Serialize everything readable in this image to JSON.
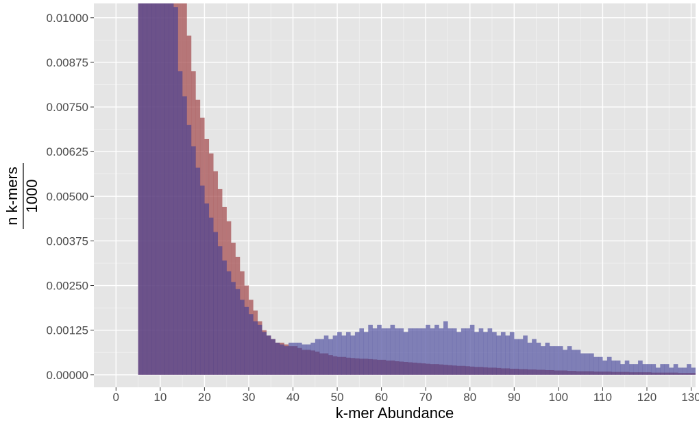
{
  "chart_data": {
    "type": "histogram",
    "title": "",
    "xlabel": "k-mer Abundance",
    "ylabel": {
      "numerator": "n k-mers",
      "denominator": "1000"
    },
    "xlim": [
      -5,
      131
    ],
    "ylim": [
      -0.00035,
      0.0104
    ],
    "bin_width": 1,
    "x_ticks": [
      0,
      10,
      20,
      30,
      40,
      50,
      60,
      70,
      80,
      90,
      100,
      110,
      120,
      130
    ],
    "y_ticks": [
      0.0,
      0.00125,
      0.0025,
      0.00375,
      0.005,
      0.00625,
      0.0075,
      0.00875,
      0.01
    ],
    "y_tick_labels": [
      "0.00000",
      "0.00125",
      "0.00250",
      "0.00375",
      "0.00500",
      "0.00625",
      "0.00750",
      "0.00875",
      "0.01000"
    ],
    "grid": true,
    "legend": "none",
    "series": [
      {
        "color": "#a2474a",
        "opacity": 0.7,
        "start": 5,
        "values": [
          0.0105,
          0.0105,
          0.0105,
          0.0105,
          0.0105,
          0.0105,
          0.0105,
          0.0105,
          0.0105,
          0.0105,
          0.0105,
          0.0095,
          0.0085,
          0.0077,
          0.0072,
          0.0066,
          0.0062,
          0.0057,
          0.0052,
          0.0047,
          0.0043,
          0.0037,
          0.0033,
          0.0029,
          0.0025,
          0.0021,
          0.0018,
          0.0015,
          0.00125,
          0.0011,
          0.001,
          0.0009,
          0.0009,
          0.00085,
          0.0008,
          0.0008,
          0.00075,
          0.0007,
          0.0007,
          0.00068,
          0.00065,
          0.0006,
          0.0006,
          0.00055,
          0.00052,
          0.0005,
          0.0005,
          0.00048,
          0.00047,
          0.00046,
          0.00045,
          0.00045,
          0.00044,
          0.00043,
          0.00042,
          0.00042,
          0.0004,
          0.0004,
          0.00038,
          0.00037,
          0.00036,
          0.00035,
          0.00034,
          0.00033,
          0.00032,
          0.00031,
          0.0003,
          0.0003,
          0.00029,
          0.00028,
          0.00027,
          0.00026,
          0.00025,
          0.00025,
          0.00024,
          0.00023,
          0.00022,
          0.00022,
          0.00021,
          0.0002,
          0.0002,
          0.00019,
          0.00018,
          0.00018,
          0.00017,
          0.00017,
          0.00016,
          0.00016,
          0.00015,
          0.00015,
          0.00014,
          0.00014,
          0.00013,
          0.00013,
          0.00012,
          0.00012,
          0.00012,
          0.00011,
          0.00011,
          0.0001,
          0.0001,
          0.0001,
          0.0001,
          9e-05,
          9e-05,
          9e-05,
          9e-05,
          8e-05,
          8e-05,
          8e-05,
          8e-05,
          7e-05,
          7e-05,
          7e-05,
          7e-05,
          7e-05,
          6e-05,
          6e-05,
          6e-05,
          6e-05,
          6e-05,
          6e-05,
          5e-05,
          5e-05,
          5e-05,
          5e-05
        ]
      },
      {
        "color": "#3b3b96",
        "opacity": 0.6,
        "start": 5,
        "values": [
          0.0105,
          0.0105,
          0.0105,
          0.0105,
          0.0105,
          0.0105,
          0.0105,
          0.0105,
          0.0103,
          0.0085,
          0.0078,
          0.007,
          0.0064,
          0.0058,
          0.0053,
          0.0048,
          0.0044,
          0.004,
          0.0036,
          0.0032,
          0.0029,
          0.0026,
          0.0024,
          0.0021,
          0.0019,
          0.0017,
          0.0015,
          0.0014,
          0.0012,
          0.0011,
          0.001,
          0.0009,
          0.00085,
          0.0008,
          0.0009,
          0.0009,
          0.0009,
          0.00085,
          0.00085,
          0.0009,
          0.001,
          0.001,
          0.0011,
          0.001,
          0.0011,
          0.0012,
          0.0011,
          0.0012,
          0.0011,
          0.0012,
          0.0013,
          0.0012,
          0.0014,
          0.0013,
          0.0014,
          0.0013,
          0.0013,
          0.0014,
          0.0013,
          0.0013,
          0.0012,
          0.0013,
          0.0013,
          0.0013,
          0.0013,
          0.0014,
          0.0013,
          0.0014,
          0.0013,
          0.0015,
          0.0013,
          0.0013,
          0.0012,
          0.0013,
          0.0013,
          0.0014,
          0.0012,
          0.0013,
          0.0012,
          0.0013,
          0.0012,
          0.0011,
          0.0012,
          0.0011,
          0.0012,
          0.001,
          0.001,
          0.0011,
          0.0009,
          0.001,
          0.0009,
          0.0008,
          0.0009,
          0.0008,
          0.0008,
          0.0008,
          0.0007,
          0.0008,
          0.0007,
          0.0007,
          0.0006,
          0.0006,
          0.0006,
          0.0005,
          0.0005,
          0.0004,
          0.0005,
          0.0004,
          0.0004,
          0.0003,
          0.0004,
          0.0003,
          0.0003,
          0.0004,
          0.0003,
          0.0003,
          0.0003,
          0.0002,
          0.0003,
          0.0003,
          0.0002,
          0.0003,
          0.0002,
          0.0002,
          0.0003,
          0.0002
        ]
      }
    ]
  }
}
